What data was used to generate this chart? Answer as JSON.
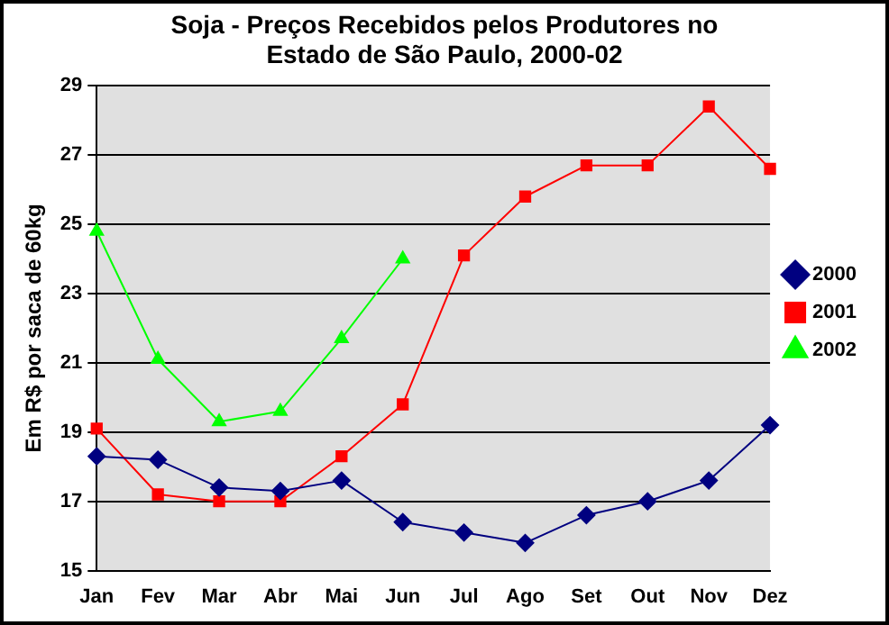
{
  "chart_data": {
    "type": "line",
    "title": "Soja - Preços Recebidos pelos Produtores no\nEstado de São Paulo, 2000-02",
    "ylabel": "Em R$ por saca de 60kg",
    "categories": [
      "Jan",
      "Fev",
      "Mar",
      "Abr",
      "Mai",
      "Jun",
      "Jul",
      "Ago",
      "Set",
      "Out",
      "Nov",
      "Dez"
    ],
    "ylim": [
      15,
      29
    ],
    "yticks": [
      15,
      17,
      19,
      21,
      23,
      25,
      27,
      29
    ],
    "grid": "y",
    "legend": "right",
    "series": [
      {
        "name": "2000",
        "color": "#000080",
        "marker": "diamond",
        "values": [
          18.3,
          18.2,
          17.4,
          17.3,
          17.6,
          16.4,
          16.1,
          15.8,
          16.6,
          17.0,
          17.6,
          19.2
        ]
      },
      {
        "name": "2001",
        "color": "#ff0000",
        "marker": "square",
        "values": [
          19.1,
          17.2,
          17.0,
          17.0,
          18.3,
          19.8,
          24.1,
          25.8,
          26.7,
          26.7,
          28.4,
          26.6
        ]
      },
      {
        "name": "2002",
        "color": "#00ff00",
        "marker": "triangle",
        "values": [
          24.8,
          21.1,
          19.3,
          19.6,
          21.7,
          24.0,
          null,
          null,
          null,
          null,
          null,
          null
        ]
      }
    ]
  }
}
